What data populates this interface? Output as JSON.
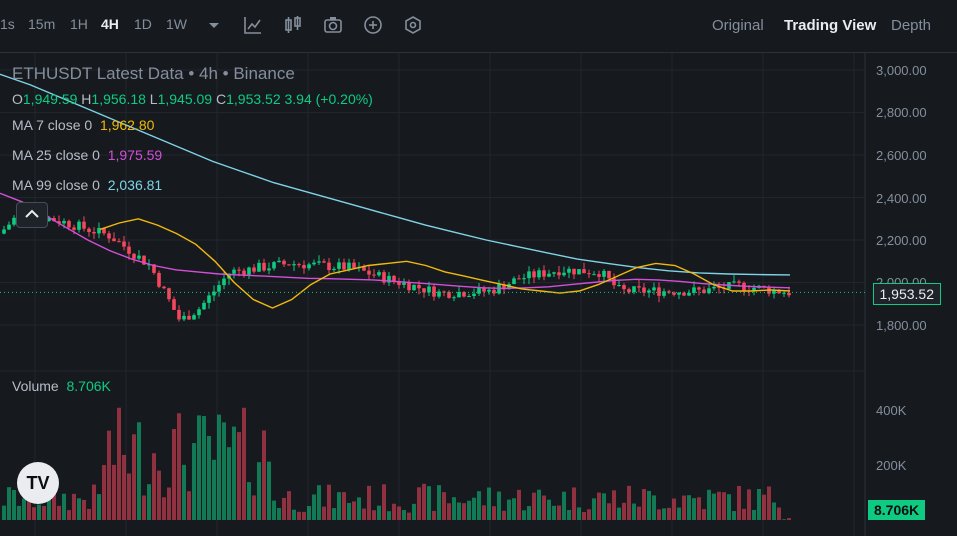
{
  "toolbar": {
    "intervals": [
      "1s",
      "15m",
      "1H",
      "4H",
      "1D",
      "1W"
    ],
    "active_interval": "4H",
    "icons": [
      "chevron-down-icon",
      "indicator-icon",
      "candlestick-settings-icon",
      "camera-icon",
      "plus-circle-icon",
      "hexagon-settings-icon"
    ],
    "views": [
      "Original",
      "Trading View",
      "Depth"
    ],
    "active_view": "Trading View"
  },
  "legend": {
    "title": "ETHUSDT Latest Data • 4h • Binance",
    "ohlc": {
      "o_label": "O",
      "o": "1,949.59",
      "h_label": "H",
      "h": "1,956.18",
      "l_label": "L",
      "l": "1,945.09",
      "c_label": "C",
      "c": "1,953.52",
      "change": "3.94 (+0.20%)"
    },
    "ma7": {
      "label": "MA 7 close 0",
      "value": "1,962.80",
      "color": "#f0b90b"
    },
    "ma25": {
      "label": "MA 25 close 0",
      "value": "1,975.59",
      "color": "#d24fd8"
    },
    "ma99": {
      "label": "MA 99 close 0",
      "value": "2,036.81",
      "color": "#7fd3e6"
    },
    "volume": {
      "label": "Volume",
      "value": "8.706K"
    }
  },
  "price_axis": [
    "3,000.00",
    "2,800.00",
    "2,600.00",
    "2,400.00",
    "2,200.00",
    "2,000.00",
    "1,800.00"
  ],
  "volume_axis": [
    "400K",
    "200K"
  ],
  "current_price": "1,953.52",
  "current_volume": "8.706K",
  "colors": {
    "up": "#0ecb81",
    "down": "#f6465d",
    "bg": "#161a1e",
    "grid": "#2b3139"
  },
  "logo": "TV",
  "chart_data": {
    "type": "candlestick",
    "interval": "4h",
    "price_range": [
      1740,
      3060
    ],
    "ma7": [
      2250,
      2280,
      2300,
      2270,
      2230,
      2180,
      2100,
      2000,
      1920,
      1880,
      1920,
      1990,
      2040,
      2060,
      2080,
      2090,
      2100,
      2080,
      2050,
      2030,
      2010,
      1990,
      1970,
      1960,
      1950,
      1960,
      1990,
      2030,
      2070,
      2090,
      2080,
      2040,
      1990,
      1960,
      1960,
      1965,
      1960
    ],
    "ma25": [
      2420,
      2380,
      2320,
      2260,
      2200,
      2150,
      2110,
      2080,
      2060,
      2050,
      2040,
      2035,
      2030,
      2025,
      2020,
      2018,
      2015,
      2012,
      2005,
      1998,
      1990,
      1982,
      1975,
      1972,
      1975,
      1980,
      1990,
      2000,
      2010,
      2015,
      2012,
      2005,
      1995,
      1988,
      1982,
      1978,
      1975
    ],
    "ma99": [
      2980,
      2930,
      2870,
      2810,
      2750,
      2690,
      2630,
      2570,
      2520,
      2470,
      2430,
      2390,
      2350,
      2310,
      2270,
      2235,
      2200,
      2170,
      2140,
      2110,
      2090,
      2070,
      2055,
      2045,
      2040,
      2037,
      2036
    ],
    "volume_max": 520000
  }
}
